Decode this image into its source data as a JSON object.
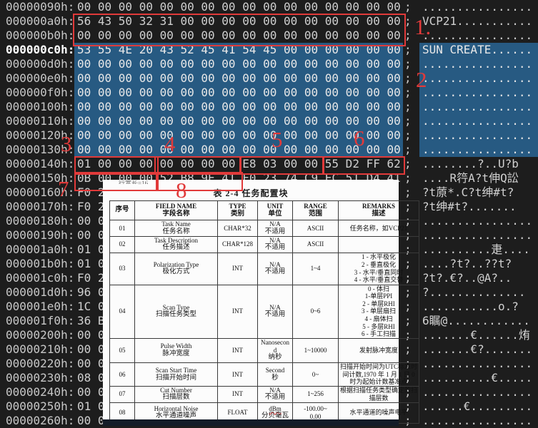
{
  "app": {
    "type": "hex-editor-view"
  },
  "colors": {
    "background": "#1d1d1d",
    "selection_blue": "#275a82",
    "annotation_red": "#e13a3a",
    "doc_background": "#fcfcfc"
  },
  "hex": {
    "rows": [
      {
        "addr": "00000090h:",
        "bytes": "00 00 00 00 00 00 00 00 00 00 00 00 00 00 00 00",
        "ascii": "................"
      },
      {
        "addr": "000000a0h:",
        "bytes": "56 43 50 32 31 00 00 00 00 00 00 00 00 00 00 00",
        "ascii": "VCP21..........."
      },
      {
        "addr": "000000b0h:",
        "bytes": "00 00 00 00 00 00 00 00 00 00 00 00 00 00 00 00",
        "ascii": "................"
      },
      {
        "addr": "000000c0h:",
        "bytes": "53 55 4E 20 43 52 45 41 54 45 00 00 00 00 00 00",
        "ascii": "SUN CREATE......",
        "selected": true,
        "current": true
      },
      {
        "addr": "000000d0h:",
        "bytes": "00 00 00 00 00 00 00 00 00 00 00 00 00 00 00 00",
        "ascii": "................",
        "selected": true
      },
      {
        "addr": "000000e0h:",
        "bytes": "00 00 00 00 00 00 00 00 00 00 00 00 00 00 00 00",
        "ascii": "................",
        "selected": true
      },
      {
        "addr": "000000f0h:",
        "bytes": "00 00 00 00 00 00 00 00 00 00 00 00 00 00 00 00",
        "ascii": "................",
        "selected": true
      },
      {
        "addr": "00000100h:",
        "bytes": "00 00 00 00 00 00 00 00 00 00 00 00 00 00 00 00",
        "ascii": "................",
        "selected": true
      },
      {
        "addr": "00000110h:",
        "bytes": "00 00 00 00 00 00 00 00 00 00 00 00 00 00 00 00",
        "ascii": "................",
        "selected": true
      },
      {
        "addr": "00000120h:",
        "bytes": "00 00 00 00 00 00 00 00 00 00 00 00 00 00 00 00",
        "ascii": "................",
        "selected": true
      },
      {
        "addr": "00000130h:",
        "bytes": "00 00 00 00 00 00 00 00 00 00 00 00 00 00 00 00",
        "ascii": "................",
        "selected": true
      },
      {
        "addr": "00000140h:",
        "bytes": "01 00 00 00 00 00 00 00 E8 03 00 00 55 D2 FF 62",
        "ascii": "........?..U?b"
      },
      {
        "addr": "00000150h:",
        "bytes": "0B 00 00 00 52 B8 9E 41 F0 23 74 C9 EC 51 D4 41",
        "ascii": "....R筕A?t伸Q訟"
      },
      {
        "addr": "00000160h:",
        "bytes": "F0 2",
        "ascii": "?t蒝*.C?t绅#t?"
      },
      {
        "addr": "00000170h:",
        "bytes": "F0 2",
        "ascii": "?t绅#t?......."
      },
      {
        "addr": "00000180h:",
        "bytes": "00 0",
        "ascii": "................"
      },
      {
        "addr": "00000190h:",
        "bytes": "00 0",
        "ascii": "................"
      },
      {
        "addr": "000001a0h:",
        "bytes": "01 0",
        "ascii": "..........疌...."
      },
      {
        "addr": "000001b0h:",
        "bytes": "01 0",
        "ascii": "....?t?..??t?"
      },
      {
        "addr": "000001c0h:",
        "bytes": "F0 2",
        "ascii": "?t?.€?..@A?.."
      },
      {
        "addr": "000001d0h:",
        "bytes": "96 0",
        "ascii": "?.............."
      },
      {
        "addr": "000001e0h:",
        "bytes": "1C 0",
        "ascii": "...........o.?"
      },
      {
        "addr": "000001f0h:",
        "bytes": "36 B",
        "ascii": "6瞩@............"
      },
      {
        "addr": "00000200h:",
        "bytes": "00 0",
        "ascii": ".......€......烠"
      },
      {
        "addr": "00000210h:",
        "bytes": "00 0",
        "ascii": ".......€?......."
      },
      {
        "addr": "00000220h:",
        "bytes": "00 0",
        "ascii": "................"
      },
      {
        "addr": "00000230h:",
        "bytes": "08 0",
        "ascii": "..........€....."
      },
      {
        "addr": "00000240h:",
        "bytes": "00 0",
        "ascii": "................"
      },
      {
        "addr": "00000250h:",
        "bytes": "01 0",
        "ascii": "......€........."
      },
      {
        "addr": "00000260h:",
        "bytes": "00 0",
        "ascii": "................"
      }
    ]
  },
  "annotations": {
    "labels": [
      "1.",
      "2",
      "3",
      "4",
      "5",
      "6",
      "7",
      "8"
    ]
  },
  "doc": {
    "top_partial": "行宽长=16",
    "title": "表 2-4 任务配置块",
    "headers": [
      {
        "en": "",
        "cn": "序号"
      },
      {
        "en": "FIELD NAME",
        "cn": "字段名称"
      },
      {
        "en": "TYPE",
        "cn": "类别"
      },
      {
        "en": "UNIT",
        "cn": "单位"
      },
      {
        "en": "RANGE",
        "cn": "范围"
      },
      {
        "en": "REMARKS",
        "cn": "描述"
      }
    ],
    "rows": [
      {
        "no": "01",
        "name_en": "Task Name",
        "name_cn": "任务名称",
        "type": "CHAR*32",
        "unit_en": "N/A",
        "unit_cn": "不适用",
        "range": "ASCII",
        "remarks": "任务名称，如VCP21"
      },
      {
        "no": "02",
        "name_en": "Task Description",
        "name_cn": "任务描述",
        "type": "CHAR*128",
        "unit_en": "N/A",
        "unit_cn": "不适用",
        "range": "ASCII",
        "remarks": ""
      },
      {
        "no": "03",
        "name_en": "Polarization Type",
        "name_cn": "极化方式",
        "type": "INT",
        "unit_en": "N/A",
        "unit_cn": "不适用",
        "range": "1~4",
        "remarks": "1 - 水平极化\n2 - 垂直极化\n3 - 水平/垂直同时\n4 - 水平/垂直交替"
      },
      {
        "no": "04",
        "name_en": "Scan Type",
        "name_cn": "扫描任务类型",
        "type": "INT",
        "unit_en": "N/A",
        "unit_cn": "不适用",
        "range": "0~6",
        "remarks": "0 - 体扫\n1-单层PPI\n2 - 单层RHI\n3 - 单层扇扫\n4 - 扇体扫\n5 - 多层RHI\n6 - 手工扫描"
      },
      {
        "no": "05",
        "name_en": "Pulse Width",
        "name_cn": "脉冲宽度",
        "type": "INT",
        "unit_en": "Nanosecond",
        "unit_cn": "纳秒",
        "range": "1~10000",
        "remarks": "发射脉冲宽度"
      },
      {
        "no": "06",
        "name_en": "Scan Start Time",
        "name_cn": "扫描开始时间",
        "type": "INT",
        "unit_en": "Second",
        "unit_cn": "秒",
        "range": "0~",
        "remarks": "扫描开始时间为UTC标准时间计数,1970 年 1 月 1 日 0 时为起始计数基准点"
      },
      {
        "no": "07",
        "name_en": "Cut Number",
        "name_cn": "扫描层数",
        "type": "INT",
        "unit_en": "N/A",
        "unit_cn": "不适用",
        "range": "1~256",
        "remarks": "根据扫描任务类型确定的扫描层数"
      },
      {
        "no": "08",
        "name_en": "Horizontal Noise",
        "name_cn": "水平通道噪声",
        "type": "FLOAT",
        "unit_en": "dBm",
        "unit_cn": "分贝毫瓦",
        "unit_wavy": true,
        "range": "-100.00~\n0.00",
        "remarks": "水平通道的噪声电平"
      }
    ]
  }
}
